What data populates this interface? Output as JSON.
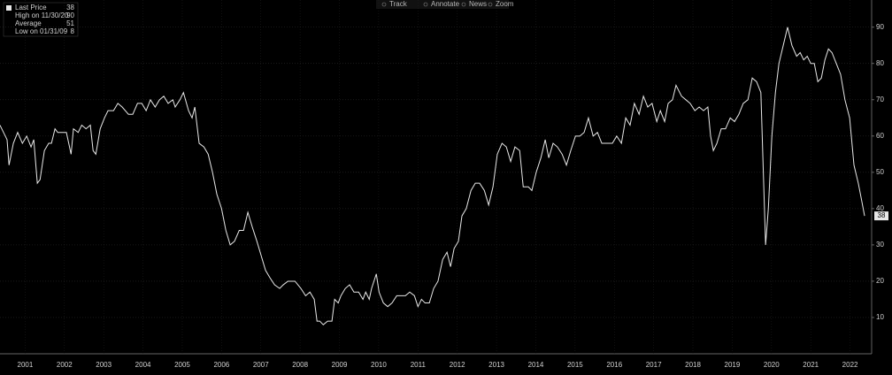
{
  "chart_data": {
    "type": "line",
    "toolbar": [
      "Track",
      "Annotate",
      "News",
      "Zoom"
    ],
    "stats": [
      {
        "label": "Last Price",
        "value": 38
      },
      {
        "label": "High on 11/30/20",
        "value": 90
      },
      {
        "label": "Average",
        "value": 51
      },
      {
        "label": "Low on 01/31/09",
        "value": 8
      }
    ],
    "x": [
      2000.86,
      2001.04,
      2001.09,
      2001.2,
      2001.31,
      2001.43,
      2001.54,
      2001.65,
      2001.72,
      2001.81,
      2001.88,
      2001.99,
      2002.1,
      2002.17,
      2002.26,
      2002.33,
      2002.55,
      2002.67,
      2002.73,
      2002.85,
      2002.94,
      2003.05,
      2003.16,
      2003.23,
      2003.3,
      2003.41,
      2003.52,
      2003.61,
      2003.75,
      2003.86,
      2003.97,
      2004.13,
      2004.24,
      2004.36,
      2004.47,
      2004.58,
      2004.69,
      2004.81,
      2004.92,
      2005.03,
      2005.14,
      2005.26,
      2005.32,
      2005.44,
      2005.53,
      2005.66,
      2005.75,
      2005.82,
      2005.93,
      2006.05,
      2006.16,
      2006.27,
      2006.38,
      2006.5,
      2006.61,
      2006.72,
      2006.83,
      2006.95,
      2007.06,
      2007.17,
      2007.28,
      2007.4,
      2007.51,
      2007.62,
      2007.73,
      2007.85,
      2007.98,
      2008.07,
      2008.19,
      2008.37,
      2008.52,
      2008.64,
      2008.75,
      2008.86,
      2008.93,
      2009.0,
      2009.09,
      2009.2,
      2009.31,
      2009.38,
      2009.47,
      2009.54,
      2009.65,
      2009.76,
      2009.87,
      2009.99,
      2010.1,
      2010.17,
      2010.26,
      2010.32,
      2010.44,
      2010.51,
      2010.62,
      2010.73,
      2010.84,
      2010.96,
      2011.07,
      2011.18,
      2011.29,
      2011.41,
      2011.5,
      2011.59,
      2011.68,
      2011.79,
      2011.9,
      2012.01,
      2012.13,
      2012.24,
      2012.33,
      2012.42,
      2012.53,
      2012.62,
      2012.73,
      2012.85,
      2012.96,
      2013.07,
      2013.19,
      2013.3,
      2013.41,
      2013.52,
      2013.64,
      2013.75,
      2013.86,
      2013.97,
      2014.09,
      2014.18,
      2014.31,
      2014.4,
      2014.51,
      2014.63,
      2014.74,
      2014.83,
      2014.94,
      2015.05,
      2015.17,
      2015.28,
      2015.39,
      2015.51,
      2015.62,
      2015.73,
      2015.84,
      2015.96,
      2016.07,
      2016.18,
      2016.32,
      2016.45,
      2016.56,
      2016.68,
      2016.79,
      2016.9,
      2017.01,
      2017.13,
      2017.24,
      2017.35,
      2017.46,
      2017.58,
      2017.67,
      2017.78,
      2017.87,
      2017.98,
      2018.07,
      2018.21,
      2018.32,
      2018.43,
      2018.55,
      2018.66,
      2018.77,
      2018.88,
      2018.95,
      2019.02,
      2019.11,
      2019.22,
      2019.33,
      2019.45,
      2019.56,
      2019.67,
      2019.78,
      2019.9,
      2020.01,
      2020.12,
      2020.23,
      2020.35,
      2020.42,
      2020.51,
      2020.6,
      2020.69,
      2020.8,
      2020.91,
      2021.02,
      2021.14,
      2021.23,
      2021.32,
      2021.41,
      2021.5,
      2021.59,
      2021.68,
      2021.77,
      2021.86,
      2021.95,
      2022.04,
      2022.15,
      2022.26,
      2022.37,
      2022.49,
      2022.6,
      2022.71,
      2022.8,
      2022.87
    ],
    "series": [
      {
        "color": "#e8e8e8",
        "values": [
          63,
          59,
          52,
          58,
          61,
          58,
          60,
          57,
          59,
          47,
          48,
          56,
          58,
          58,
          62,
          61,
          61,
          55,
          62,
          61,
          63,
          62,
          63,
          56,
          55,
          62,
          65,
          67,
          67,
          69,
          68,
          66,
          66,
          69,
          69,
          67,
          70,
          68,
          70,
          71,
          69,
          70,
          68,
          70,
          72,
          67,
          65,
          68,
          58,
          57,
          55,
          50,
          44,
          40,
          34,
          30,
          31,
          34,
          34,
          39,
          35,
          31,
          27,
          23,
          21,
          19,
          18,
          19,
          20,
          20,
          18,
          16,
          17,
          15,
          9,
          9,
          8,
          9,
          9,
          15,
          14,
          16,
          18,
          19,
          17,
          17,
          15,
          17,
          15,
          18,
          22,
          17,
          14,
          13,
          14,
          16,
          16,
          16,
          17,
          16,
          13,
          15,
          14,
          14,
          18,
          20,
          26,
          28,
          24,
          29,
          31,
          38,
          40,
          45,
          47,
          47,
          45,
          41,
          46,
          55,
          58,
          57,
          53,
          57,
          56,
          46,
          46,
          45,
          50,
          54,
          59,
          54,
          58,
          57,
          55,
          52,
          56,
          60,
          60,
          61,
          65,
          60,
          61,
          58,
          58,
          58,
          60,
          58,
          65,
          63,
          69,
          66,
          71,
          68,
          69,
          64,
          67,
          64,
          69,
          70,
          74,
          71,
          70,
          69,
          67,
          68,
          67,
          68,
          60,
          56,
          58,
          62,
          62,
          65,
          64,
          66,
          69,
          70,
          76,
          75,
          72,
          30,
          40,
          60,
          72,
          80,
          85,
          90,
          85,
          82,
          83,
          81,
          82,
          80,
          80,
          75,
          76,
          81,
          84,
          83,
          80,
          77,
          70,
          65,
          52,
          47,
          42,
          38
        ]
      }
    ],
    "xlim": [
      2000.86,
      2023.05
    ],
    "xticks": [
      {
        "value": 2001.5,
        "label": "2001"
      },
      {
        "value": 2002.5,
        "label": "2002"
      },
      {
        "value": 2003.5,
        "label": "2003"
      },
      {
        "value": 2004.5,
        "label": "2004"
      },
      {
        "value": 2005.5,
        "label": "2005"
      },
      {
        "value": 2006.5,
        "label": "2006"
      },
      {
        "value": 2007.5,
        "label": "2007"
      },
      {
        "value": 2008.5,
        "label": "2008"
      },
      {
        "value": 2009.5,
        "label": "2009"
      },
      {
        "value": 2010.5,
        "label": "2010"
      },
      {
        "value": 2011.5,
        "label": "2011"
      },
      {
        "value": 2012.5,
        "label": "2012"
      },
      {
        "value": 2013.5,
        "label": "2013"
      },
      {
        "value": 2014.5,
        "label": "2014"
      },
      {
        "value": 2015.5,
        "label": "2015"
      },
      {
        "value": 2016.5,
        "label": "2016"
      },
      {
        "value": 2017.5,
        "label": "2017"
      },
      {
        "value": 2018.5,
        "label": "2018"
      },
      {
        "value": 2019.5,
        "label": "2019"
      },
      {
        "value": 2020.5,
        "label": "2020"
      },
      {
        "value": 2021.5,
        "label": "2021"
      },
      {
        "value": 2022.5,
        "label": "2022"
      }
    ],
    "ylim": [
      0,
      97.5
    ],
    "yticks": [
      10,
      20,
      30,
      40,
      50,
      60,
      70,
      80,
      90
    ],
    "grid": true
  }
}
